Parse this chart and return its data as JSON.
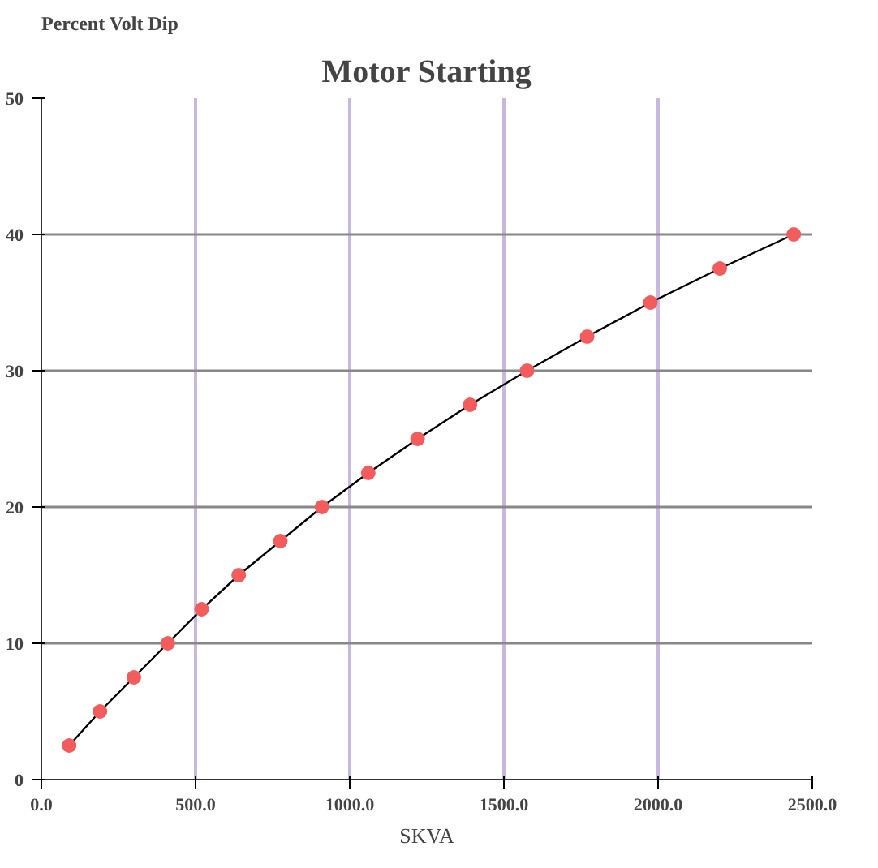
{
  "chart_data": {
    "type": "line",
    "title": "Motor Starting",
    "xlabel": "SKVA",
    "ylabel": "Percent Volt Dip",
    "x": [
      90,
      190,
      300,
      410,
      520,
      640,
      775,
      910,
      1060,
      1220,
      1390,
      1575,
      1770,
      1975,
      2200,
      2440
    ],
    "series": [
      {
        "color": "#f25c5c",
        "values": [
          2.5,
          5,
          7.5,
          10,
          12.5,
          15,
          17.5,
          20,
          22.5,
          25,
          27.5,
          30,
          32.5,
          35,
          37.5,
          40
        ]
      }
    ],
    "marker": "circle",
    "xlim": [
      0,
      2500
    ],
    "xticks": [
      {
        "value": 0,
        "label": "0.0"
      },
      {
        "value": 500,
        "label": "500.0"
      },
      {
        "value": 1000,
        "label": "1000.0"
      },
      {
        "value": 1500,
        "label": "1500.0"
      },
      {
        "value": 2000,
        "label": "2000.0"
      },
      {
        "value": 2500,
        "label": "2500.0"
      }
    ],
    "ylim": [
      0,
      50
    ],
    "yticks": [
      0,
      10,
      20,
      30,
      40,
      50
    ],
    "grid": true
  }
}
